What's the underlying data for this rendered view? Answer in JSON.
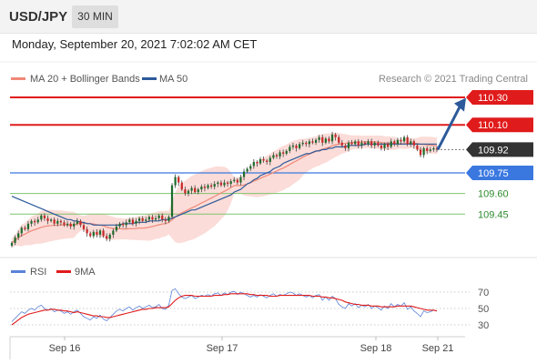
{
  "header": {
    "pair": "USD/JPY",
    "timeframe": "30 MIN",
    "datetime": "Monday, September 20, 2021 7:02:02 AM CET"
  },
  "legend": {
    "ma20_bb": "MA 20 + Bollinger Bands",
    "ma50": "MA 50",
    "source": "Research © 2021 Trading Central",
    "rsi": "RSI",
    "ma9": "9MA"
  },
  "colors": {
    "bullish": "#1e6b2c",
    "bearish": "#c82828",
    "bb_fill": "#fbdcd8",
    "ma20": "#f08878",
    "ma50": "#2c5a9a",
    "resistance": "#e01b1b",
    "current": "#333333",
    "pivot": "#3a78e0",
    "support": "#7cc46e",
    "arrow": "#2c5a9a",
    "rsi": "#5a82d8",
    "ma9": "#e01b1b"
  },
  "chart_data": [
    {
      "type": "candlestick",
      "instrument": "USD/JPY",
      "timeframe": "30 MIN",
      "x_labels": [
        "Sep 16",
        "Sep 17",
        "Sep 18",
        "Sep 21"
      ],
      "ylim": [
        109.18,
        110.36
      ],
      "levels": [
        {
          "label": "110.30",
          "value": 110.3,
          "kind": "resistance"
        },
        {
          "label": "110.10",
          "value": 110.1,
          "kind": "resistance"
        },
        {
          "label": "109.92",
          "value": 109.92,
          "kind": "current"
        },
        {
          "label": "109.75",
          "value": 109.75,
          "kind": "pivot"
        },
        {
          "label": "109.60",
          "value": 109.6,
          "kind": "support"
        },
        {
          "label": "109.45",
          "value": 109.45,
          "kind": "support"
        }
      ],
      "close": [
        109.24,
        109.28,
        109.31,
        109.35,
        109.34,
        109.38,
        109.4,
        109.39,
        109.41,
        109.44,
        109.42,
        109.4,
        109.41,
        109.38,
        109.4,
        109.39,
        109.37,
        109.38,
        109.36,
        109.38,
        109.4,
        109.37,
        109.34,
        109.31,
        109.29,
        109.32,
        109.3,
        109.33,
        109.29,
        109.27,
        109.3,
        109.33,
        109.36,
        109.38,
        109.37,
        109.39,
        109.41,
        109.38,
        109.4,
        109.42,
        109.4,
        109.41,
        109.43,
        109.41,
        109.42,
        109.44,
        109.41,
        109.4,
        109.43,
        109.66,
        109.72,
        109.68,
        109.63,
        109.6,
        109.62,
        109.64,
        109.61,
        109.63,
        109.65,
        109.64,
        109.66,
        109.65,
        109.67,
        109.68,
        109.66,
        109.68,
        109.67,
        109.69,
        109.7,
        109.68,
        109.72,
        109.76,
        109.78,
        109.8,
        109.83,
        109.82,
        109.85,
        109.84,
        109.83,
        109.86,
        109.88,
        109.87,
        109.9,
        109.89,
        109.91,
        109.94,
        109.95,
        109.93,
        109.96,
        109.97,
        109.96,
        109.98,
        109.97,
        109.99,
        110.01,
        109.97,
        110.0,
        109.98,
        110.03,
        110.01,
        109.97,
        109.95,
        109.93,
        109.97,
        109.96,
        109.98,
        109.95,
        109.97,
        109.96,
        109.98,
        109.95,
        109.97,
        109.95,
        109.93,
        109.96,
        109.94,
        109.98,
        109.96,
        109.99,
        109.98,
        110.01,
        109.96,
        109.98,
        109.95,
        109.92,
        109.88,
        109.93,
        109.91,
        109.92,
        109.93,
        109.92
      ],
      "ma50": [
        109.58,
        109.57,
        109.56,
        109.55,
        109.54,
        109.53,
        109.52,
        109.51,
        109.5,
        109.49,
        109.48,
        109.47,
        109.46,
        109.45,
        109.44,
        109.43,
        109.42,
        109.41,
        109.41,
        109.4,
        109.4,
        109.39,
        109.39,
        109.38,
        109.38,
        109.37,
        109.37,
        109.37,
        109.37,
        109.37,
        109.37,
        109.37,
        109.37,
        109.37,
        109.38,
        109.38,
        109.38,
        109.38,
        109.39,
        109.39,
        109.39,
        109.39,
        109.4,
        109.4,
        109.4,
        109.4,
        109.41,
        109.41,
        109.41,
        109.42,
        109.43,
        109.44,
        109.45,
        109.46,
        109.47,
        109.48,
        109.48,
        109.49,
        109.5,
        109.51,
        109.52,
        109.53,
        109.54,
        109.55,
        109.56,
        109.57,
        109.58,
        109.59,
        109.61,
        109.62,
        109.63,
        109.65,
        109.67,
        109.68,
        109.7,
        109.71,
        109.73,
        109.74,
        109.75,
        109.76,
        109.78,
        109.79,
        109.8,
        109.82,
        109.83,
        109.84,
        109.85,
        109.86,
        109.87,
        109.88,
        109.89,
        109.89,
        109.9,
        109.91,
        109.91,
        109.92,
        109.92,
        109.93,
        109.93,
        109.94,
        109.94,
        109.94,
        109.94,
        109.95,
        109.95,
        109.95,
        109.95,
        109.95,
        109.96,
        109.96,
        109.96,
        109.96,
        109.96,
        109.96,
        109.96,
        109.96,
        109.96,
        109.96,
        109.96,
        109.96,
        109.96,
        109.96,
        109.96,
        109.96,
        109.96,
        109.96,
        109.96,
        109.96,
        109.96,
        109.96,
        109.96
      ]
    },
    {
      "type": "line",
      "ylim": [
        20,
        80
      ],
      "ticks": [
        70,
        50,
        30
      ],
      "series": [
        {
          "name": "RSI",
          "values": [
            34,
            38,
            42,
            46,
            44,
            48,
            50,
            48,
            52,
            54,
            50,
            48,
            50,
            46,
            48,
            47,
            44,
            46,
            43,
            46,
            48,
            44,
            40,
            38,
            36,
            40,
            38,
            42,
            37,
            35,
            39,
            43,
            47,
            49,
            47,
            50,
            52,
            48,
            51,
            53,
            50,
            52,
            54,
            51,
            52,
            55,
            50,
            49,
            54,
            72,
            74,
            68,
            64,
            62,
            64,
            66,
            62,
            64,
            66,
            65,
            67,
            65,
            68,
            69,
            66,
            69,
            67,
            70,
            71,
            67,
            70,
            68,
            66,
            64,
            66,
            64,
            67,
            65,
            63,
            66,
            68,
            65,
            67,
            66,
            68,
            70,
            69,
            66,
            68,
            66,
            64,
            66,
            63,
            66,
            67,
            60,
            64,
            60,
            65,
            62,
            55,
            52,
            50,
            56,
            53,
            56,
            51,
            54,
            52,
            55,
            50,
            53,
            51,
            48,
            53,
            50,
            56,
            52,
            55,
            53,
            57,
            49,
            52,
            47,
            44,
            40,
            47,
            45,
            46,
            48,
            47
          ]
        },
        {
          "name": "9MA",
          "values": [
            30,
            33,
            36,
            39,
            41,
            43,
            44,
            45,
            46,
            47,
            48,
            48,
            49,
            49,
            48,
            48,
            47,
            47,
            46,
            45,
            46,
            45,
            44,
            43,
            42,
            41,
            41,
            40,
            40,
            39,
            39,
            40,
            41,
            42,
            43,
            44,
            45,
            46,
            47,
            48,
            49,
            49,
            50,
            50,
            51,
            51,
            51,
            51,
            52,
            56,
            60,
            63,
            65,
            66,
            66,
            66,
            65,
            65,
            65,
            65,
            65,
            65,
            66,
            66,
            66,
            67,
            67,
            68,
            68,
            68,
            68,
            68,
            68,
            67,
            67,
            66,
            66,
            66,
            66,
            65,
            65,
            65,
            66,
            66,
            66,
            66,
            66,
            66,
            66,
            66,
            66,
            66,
            65,
            65,
            65,
            64,
            64,
            63,
            63,
            62,
            61,
            60,
            58,
            57,
            56,
            55,
            55,
            54,
            54,
            54,
            53,
            53,
            53,
            52,
            52,
            52,
            52,
            52,
            53,
            53,
            53,
            53,
            53,
            52,
            51,
            50,
            49,
            48,
            48,
            48,
            47
          ]
        }
      ]
    }
  ]
}
